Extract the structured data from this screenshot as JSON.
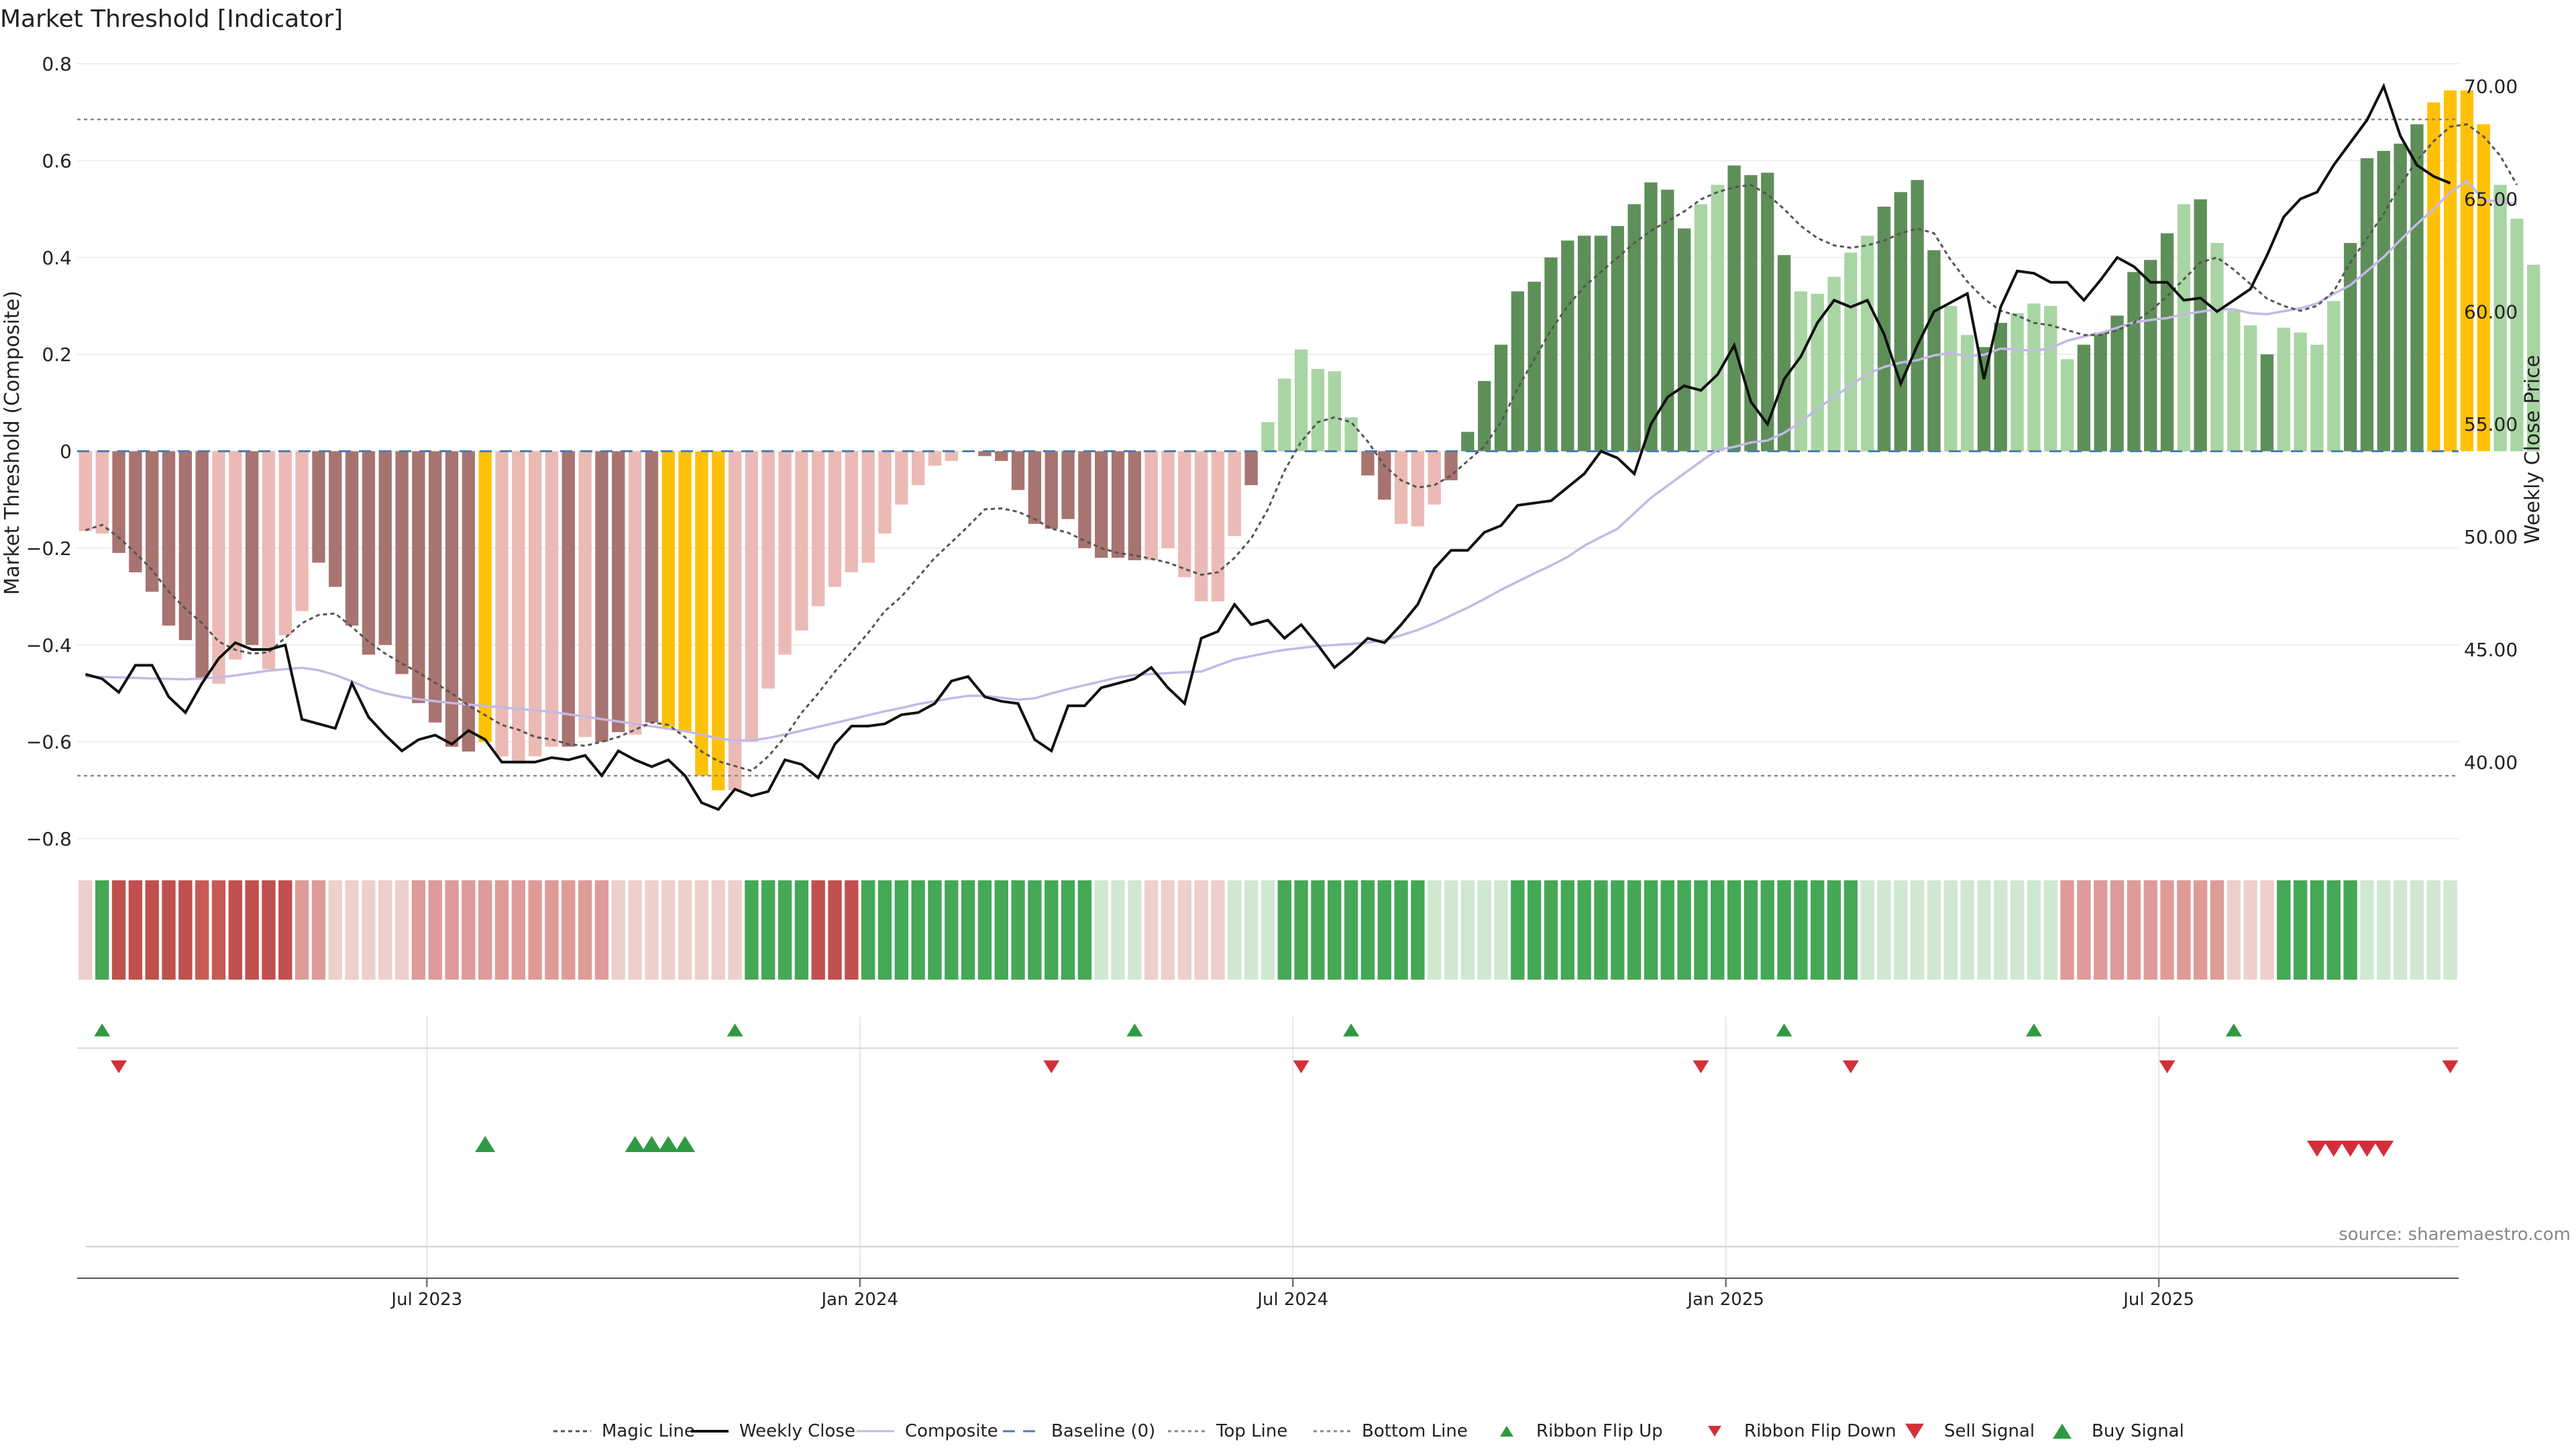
{
  "title": "Market Threshold [Indicator]",
  "source": "source: sharemaestro.com",
  "colors": {
    "bar_green_dark": "#5e8f59",
    "bar_green_light": "#a8d5a3",
    "bar_red_dark": "#a87470",
    "bar_red_light": "#ebbab4",
    "bar_yellow": "#ffc107",
    "close": "#111111",
    "composite": "#c4b8e6",
    "magic": "#555555",
    "baseline": "#4a7fb5",
    "threshold": "#888888",
    "ribbon_green": "#3f9f50",
    "ribbon_red": "#c0504d",
    "signal_up": "#2e9a41",
    "signal_down": "#d32f3a"
  },
  "legend": {
    "magic": "Magic Line",
    "close": "Weekly Close",
    "composite": "Composite",
    "baseline": "Baseline (0)",
    "top": "Top Line",
    "bottom": "Bottom Line",
    "ribbon_up": "Ribbon Flip Up",
    "ribbon_down": "Ribbon Flip Down",
    "sell": "Sell Signal",
    "buy": "Buy Signal"
  },
  "chart_data": {
    "type": "bar",
    "title": "Market Threshold [Indicator]",
    "y_left_label": "Market Threshold (Composite)",
    "y_right_label": "Weekly Close Price",
    "y_left_ticks": [
      "0.8",
      "0.6",
      "0.4",
      "0.2",
      "0",
      "−0.2",
      "−0.4",
      "−0.6",
      "−0.8"
    ],
    "y_left_tick_values": [
      0.8,
      0.6,
      0.4,
      0.2,
      0,
      -0.2,
      -0.4,
      -0.6,
      -0.8
    ],
    "y_right_ticks": [
      "70.00",
      "65.00",
      "60.00",
      "55.00",
      "50.00",
      "45.00",
      "40.00"
    ],
    "y_right_tick_values": [
      70,
      65,
      60,
      55,
      50,
      45,
      40
    ],
    "ylim_left": [
      -0.8,
      0.8
    ],
    "ylim_right": [
      36.6,
      71.0
    ],
    "x_ticks": [
      "Jul 2023",
      "Jan 2024",
      "Jul 2024",
      "Jan 2025",
      "Jul 2025"
    ],
    "x_tick_weeks": [
      21,
      47,
      73,
      99,
      125
    ],
    "n_weeks": 143,
    "top_line": 0.685,
    "bottom_line": -0.67,
    "baseline": 0,
    "composite_values": [
      -0.165,
      -0.17,
      -0.21,
      -0.25,
      -0.29,
      -0.36,
      -0.39,
      -0.47,
      -0.48,
      -0.43,
      -0.4,
      -0.45,
      -0.38,
      -0.33,
      -0.23,
      -0.28,
      -0.36,
      -0.42,
      -0.4,
      -0.46,
      -0.52,
      -0.56,
      -0.61,
      -0.62,
      -0.6,
      -0.63,
      -0.645,
      -0.63,
      -0.61,
      -0.61,
      -0.59,
      -0.6,
      -0.58,
      -0.585,
      -0.56,
      -0.57,
      -0.58,
      -0.67,
      -0.7,
      -0.7,
      -0.6,
      -0.49,
      -0.42,
      -0.37,
      -0.32,
      -0.28,
      -0.25,
      -0.23,
      -0.17,
      -0.11,
      -0.07,
      -0.03,
      -0.02,
      0,
      -0.01,
      -0.02,
      -0.08,
      -0.15,
      -0.16,
      -0.14,
      -0.2,
      -0.22,
      -0.22,
      -0.225,
      -0.225,
      -0.2,
      -0.26,
      -0.31,
      -0.31,
      -0.175,
      -0.07,
      0.06,
      0.15,
      0.21,
      0.17,
      0.165,
      0.07,
      -0.05,
      -0.1,
      -0.15,
      -0.155,
      -0.11,
      -0.06,
      0.04,
      0.145,
      0.22,
      0.33,
      0.35,
      0.4,
      0.435,
      0.445,
      0.445,
      0.465,
      0.51,
      0.555,
      0.54,
      0.46,
      0.51,
      0.55,
      0.59,
      0.57,
      0.575,
      0.405,
      0.33,
      0.325,
      0.36,
      0.41,
      0.445,
      0.505,
      0.535,
      0.56,
      0.415,
      0.3,
      0.24,
      0.215,
      0.265,
      0.285,
      0.305,
      0.3,
      0.19,
      0.22,
      0.245,
      0.28,
      0.37,
      0.395,
      0.45,
      0.51,
      0.52,
      0.43,
      0.29,
      0.26,
      0.2,
      0.255,
      0.245,
      0.22,
      0.31,
      0.43,
      0.605,
      0.62,
      0.635,
      0.675,
      0.72,
      0.745,
      0.745,
      0.675,
      0.55,
      0.48,
      0.385
    ],
    "bar_colors": "LLDDDDDDLLDLLLDDDDDDDDDDYLLLLDLDDLDYYYYLLLLLLLLLLLLLLDDDDDDDDDDDLLLLLLDLLLLLLDDLLLDDDDDDDDDDDDDDDLLDDDDLLLLLDDDDLLDDLLLLDDDDDDLDLLLDLLLLDDDDDYYYYLLL",
    "weekly_close": [
      43.9,
      43.7,
      43.1,
      44.3,
      44.3,
      42.9,
      42.2,
      43.5,
      44.6,
      45.3,
      45.0,
      45.0,
      45.2,
      41.9,
      41.7,
      41.5,
      43.5,
      42.0,
      41.2,
      40.5,
      41.0,
      41.2,
      40.8,
      41.4,
      41.0,
      40.0,
      40.0,
      40.0,
      40.2,
      40.1,
      40.3,
      39.4,
      40.5,
      40.1,
      39.8,
      40.1,
      39.4,
      38.2,
      37.9,
      38.8,
      38.5,
      38.7,
      40.1,
      39.9,
      39.3,
      40.8,
      41.6,
      41.6,
      41.7,
      42.1,
      42.2,
      42.6,
      43.6,
      43.8,
      42.9,
      42.7,
      42.6,
      41.0,
      40.5,
      42.5,
      42.5,
      43.3,
      43.5,
      43.7,
      44.2,
      43.3,
      42.6,
      45.5,
      45.8,
      47.0,
      46.1,
      46.3,
      45.5,
      46.1,
      45.2,
      44.2,
      44.8,
      45.5,
      45.3,
      46.1,
      47.0,
      48.6,
      49.4,
      49.4,
      50.2,
      50.5,
      51.4,
      51.5,
      51.6,
      52.2,
      52.8,
      53.8,
      53.5,
      52.8,
      55.0,
      56.2,
      56.7,
      56.5,
      57.2,
      58.5,
      56.0,
      55.0,
      57.0,
      58.0,
      59.5,
      60.5,
      60.2,
      60.5,
      59.0,
      56.8,
      58.5,
      60.0,
      60.4,
      60.8,
      57.0,
      60.2,
      61.8,
      61.7,
      61.3,
      61.3,
      60.5,
      61.4,
      62.4,
      62.0,
      61.3,
      61.3,
      60.5,
      60.6,
      60.0,
      60.5,
      61.0,
      62.5,
      64.2,
      65.0,
      65.3,
      66.5,
      67.5,
      68.5,
      70.0,
      67.8,
      66.5,
      66.0,
      65.7
    ],
    "composite_line": [
      -0.465,
      -0.466,
      -0.467,
      -0.468,
      -0.469,
      -0.47,
      -0.471,
      -0.469,
      -0.467,
      -0.463,
      -0.458,
      -0.453,
      -0.45,
      -0.447,
      -0.452,
      -0.462,
      -0.475,
      -0.49,
      -0.5,
      -0.507,
      -0.512,
      -0.516,
      -0.52,
      -0.523,
      -0.526,
      -0.529,
      -0.532,
      -0.535,
      -0.538,
      -0.543,
      -0.548,
      -0.553,
      -0.558,
      -0.563,
      -0.568,
      -0.573,
      -0.578,
      -0.585,
      -0.593,
      -0.597,
      -0.597,
      -0.592,
      -0.585,
      -0.577,
      -0.569,
      -0.561,
      -0.553,
      -0.545,
      -0.537,
      -0.53,
      -0.522,
      -0.516,
      -0.51,
      -0.505,
      -0.505,
      -0.509,
      -0.513,
      -0.51,
      -0.5,
      -0.491,
      -0.483,
      -0.475,
      -0.467,
      -0.462,
      -0.46,
      -0.458,
      -0.456,
      -0.455,
      -0.442,
      -0.43,
      -0.423,
      -0.416,
      -0.41,
      -0.406,
      -0.402,
      -0.4,
      -0.398,
      -0.395,
      -0.39,
      -0.38,
      -0.369,
      -0.355,
      -0.339,
      -0.323,
      -0.305,
      -0.286,
      -0.269,
      -0.252,
      -0.236,
      -0.218,
      -0.195,
      -0.177,
      -0.16,
      -0.128,
      -0.096,
      -0.071,
      -0.046,
      -0.021,
      0.003,
      0.009,
      0.018,
      0.022,
      0.038,
      0.06,
      0.088,
      0.112,
      0.136,
      0.16,
      0.174,
      0.183,
      0.188,
      0.198,
      0.203,
      0.196,
      0.199,
      0.212,
      0.21,
      0.207,
      0.213,
      0.228,
      0.237,
      0.244,
      0.255,
      0.266,
      0.271,
      0.275,
      0.283,
      0.288,
      0.293,
      0.293,
      0.285,
      0.283,
      0.289,
      0.295,
      0.305,
      0.325,
      0.343,
      0.372,
      0.401,
      0.436,
      0.469,
      0.5,
      0.535,
      0.558,
      0.519,
      0.515,
      0.51
    ],
    "magic_line": [
      -0.163,
      -0.152,
      -0.178,
      -0.21,
      -0.245,
      -0.29,
      -0.325,
      -0.355,
      -0.393,
      -0.41,
      -0.418,
      -0.415,
      -0.385,
      -0.355,
      -0.338,
      -0.335,
      -0.363,
      -0.393,
      -0.418,
      -0.438,
      -0.457,
      -0.478,
      -0.5,
      -0.525,
      -0.545,
      -0.565,
      -0.575,
      -0.59,
      -0.595,
      -0.605,
      -0.608,
      -0.6,
      -0.59,
      -0.575,
      -0.56,
      -0.565,
      -0.59,
      -0.62,
      -0.64,
      -0.65,
      -0.66,
      -0.63,
      -0.59,
      -0.54,
      -0.5,
      -0.455,
      -0.415,
      -0.375,
      -0.33,
      -0.3,
      -0.26,
      -0.22,
      -0.188,
      -0.155,
      -0.12,
      -0.118,
      -0.125,
      -0.14,
      -0.16,
      -0.168,
      -0.185,
      -0.2,
      -0.21,
      -0.215,
      -0.222,
      -0.23,
      -0.243,
      -0.255,
      -0.25,
      -0.22,
      -0.18,
      -0.12,
      -0.04,
      0.02,
      0.06,
      0.07,
      0.06,
      0.02,
      -0.03,
      -0.06,
      -0.075,
      -0.07,
      -0.05,
      -0.02,
      0.01,
      0.06,
      0.13,
      0.19,
      0.25,
      0.3,
      0.34,
      0.37,
      0.4,
      0.43,
      0.455,
      0.475,
      0.495,
      0.52,
      0.535,
      0.545,
      0.55,
      0.53,
      0.5,
      0.465,
      0.44,
      0.425,
      0.42,
      0.425,
      0.435,
      0.45,
      0.46,
      0.45,
      0.395,
      0.35,
      0.315,
      0.29,
      0.28,
      0.265,
      0.26,
      0.25,
      0.24,
      0.24,
      0.25,
      0.265,
      0.29,
      0.32,
      0.355,
      0.39,
      0.4,
      0.375,
      0.345,
      0.315,
      0.3,
      0.29,
      0.3,
      0.33,
      0.39,
      0.44,
      0.49,
      0.55,
      0.6,
      0.64,
      0.67,
      0.675,
      0.65,
      0.61,
      0.55
    ],
    "ribbon": "LGHHHHHIIHHHHMMLLLLLMMMMMMMMMMMMLLLLLLLLGGGGHHHGGGGGGGGGGGGGGPPPLLLLLPPPGGGGGGGGGPPPPPGGGGGGGGGGGGGGGGGGGGGPPPPPPPPPPPPMMMMMMMMMMLLLGGGGGPPPPPPGGGGGGGGGGGGGGGGL",
    "ribbon_flip_up_weeks": [
      1,
      39,
      63,
      76,
      102,
      117,
      129
    ],
    "ribbon_flip_down_weeks": [
      2,
      58,
      73,
      97,
      106,
      125,
      142
    ],
    "buy_signal_weeks": [
      24,
      33,
      34,
      35,
      36
    ],
    "sell_signal_weeks": [
      134,
      135,
      136,
      137,
      138
    ]
  }
}
